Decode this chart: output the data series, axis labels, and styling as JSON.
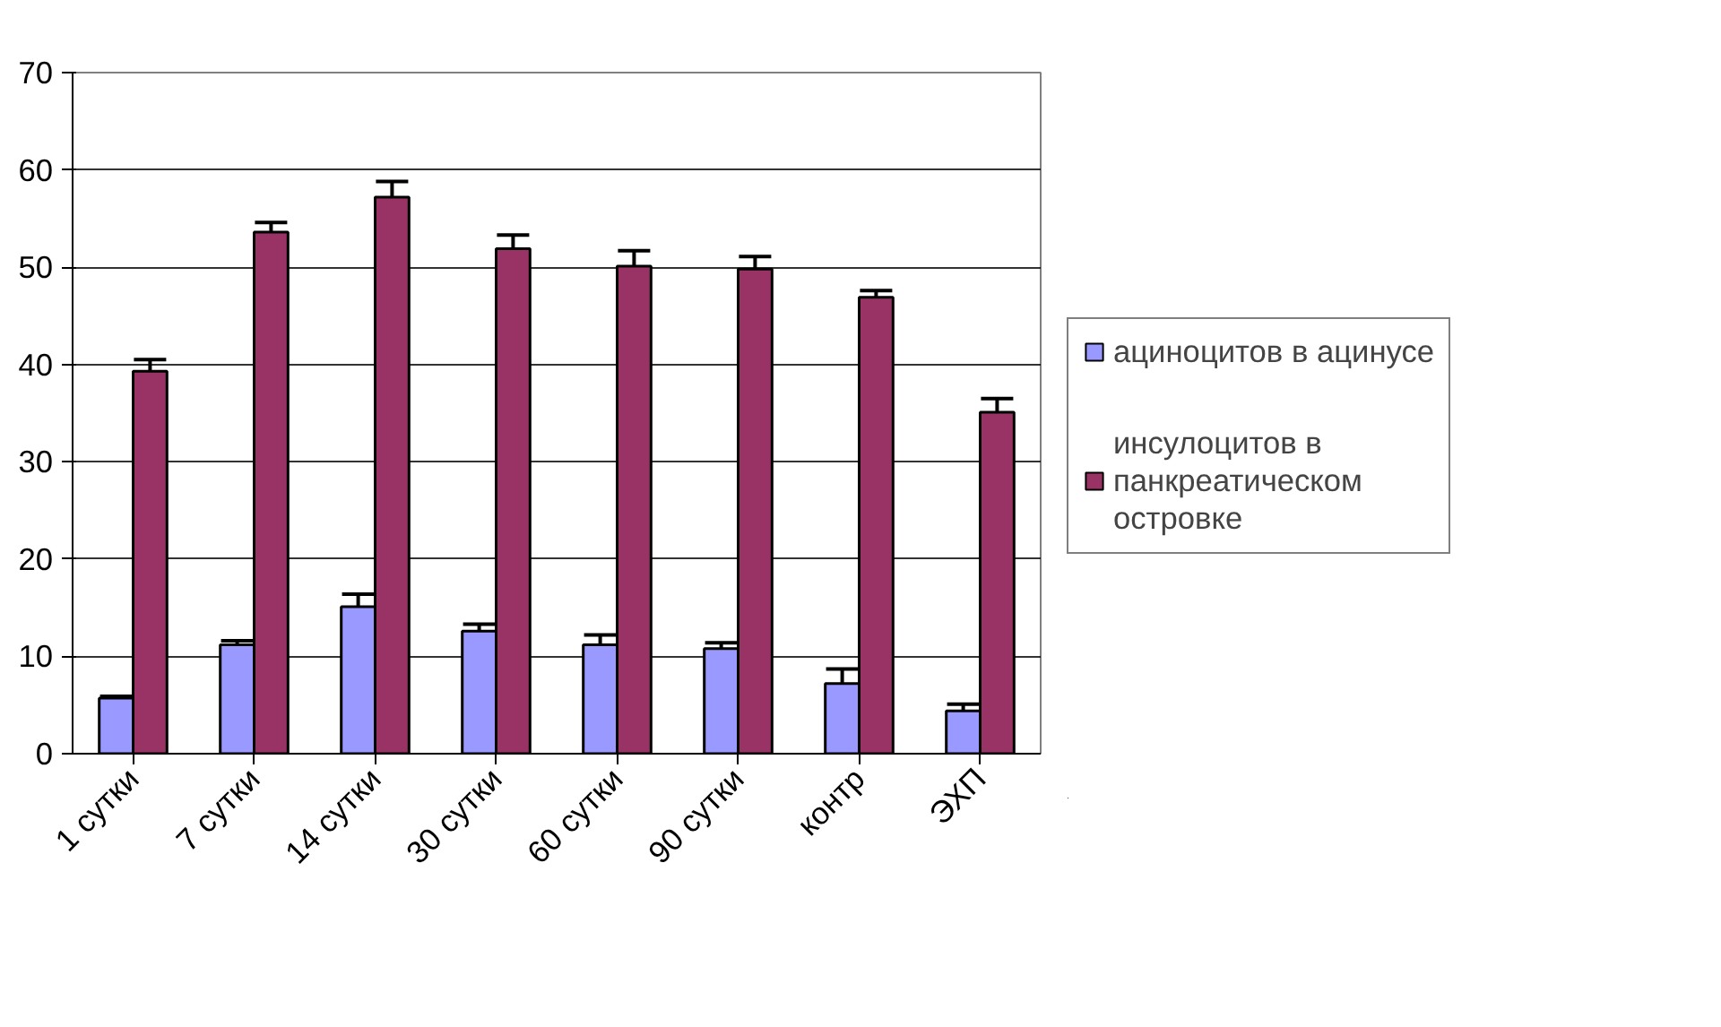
{
  "chart_data": {
    "type": "bar",
    "categories": [
      "1 сутки",
      "7 сутки",
      "14 сутки",
      "30 сутки",
      "60 сутки",
      "90 сутки",
      "контр",
      "ЭХП"
    ],
    "series": [
      {
        "name": "ациноцитов в ацинусе",
        "color": "#9999ff",
        "values": [
          5.7,
          11.2,
          15.1,
          12.6,
          11.2,
          10.8,
          7.2,
          4.4
        ],
        "errors": [
          0.2,
          0.4,
          1.3,
          0.7,
          1.0,
          0.6,
          1.5,
          0.7
        ]
      },
      {
        "name": "инсулоцитов в панкреатическом островке",
        "color": "#993366",
        "values": [
          39.3,
          53.6,
          57.2,
          51.9,
          50.1,
          49.8,
          46.9,
          35.1
        ],
        "errors": [
          1.2,
          1.0,
          1.6,
          1.4,
          1.6,
          1.3,
          0.7,
          1.4
        ]
      }
    ],
    "ylim": [
      0,
      70
    ],
    "yticks": [
      0,
      10,
      20,
      30,
      40,
      50,
      60,
      70
    ],
    "grid": "y",
    "legend": "right"
  }
}
